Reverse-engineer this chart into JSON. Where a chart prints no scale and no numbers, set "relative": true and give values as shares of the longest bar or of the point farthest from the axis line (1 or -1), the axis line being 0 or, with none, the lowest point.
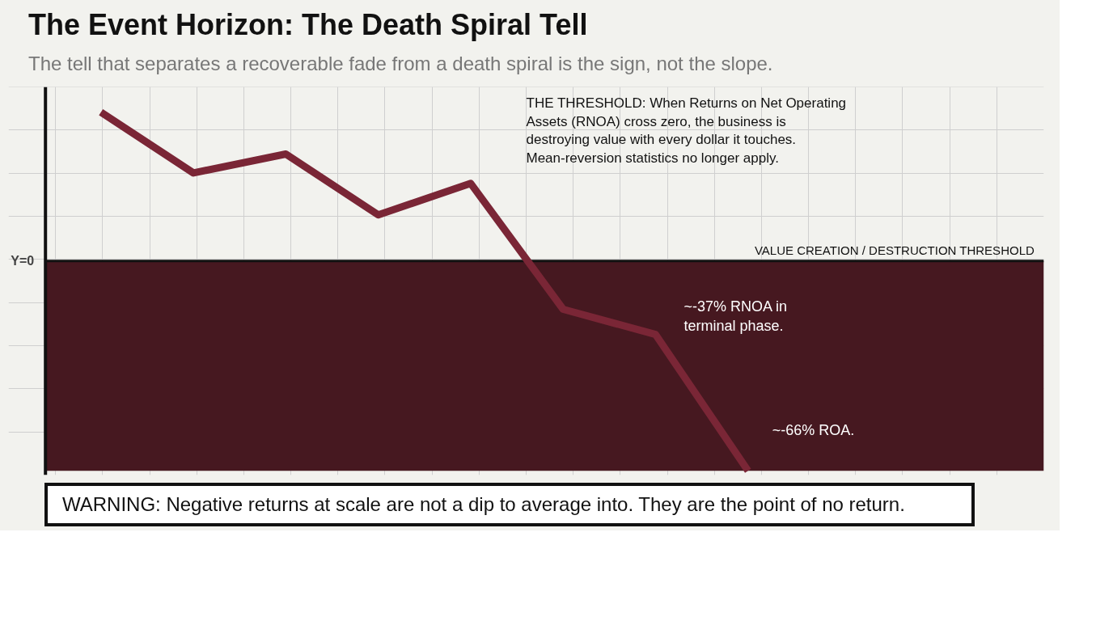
{
  "chart_data": {
    "type": "line",
    "relative": true,
    "title": "The Event Horizon: The Death Spiral Tell",
    "subtitle": "The tell that separates a recoverable fade from a death spiral is the sign, not the slope.",
    "categories": [
      null,
      null,
      null,
      null,
      null,
      null,
      null,
      null
    ],
    "tick_labels": false,
    "grid": true,
    "marker": "none",
    "line_style": "solid",
    "series": [
      {
        "color": "#7a2636",
        "values": [
          0.71,
          0.42,
          0.51,
          0.22,
          0.37,
          -0.23,
          -0.35,
          -1.0
        ]
      }
    ],
    "ref_lines": [
      {
        "axis": "y",
        "label": "VALUE CREATION / DESTRUCTION THRESHOLD",
        "color": "#111111",
        "line_style": "solid"
      }
    ],
    "bands": [
      {
        "axis": "y",
        "from": -1.0,
        "to": 0,
        "color": "#461820"
      }
    ],
    "annotations": [
      "Y=0",
      "THE THRESHOLD: When Returns on Net Operating Assets (RNOA) cross zero, the business is destroying value with every dollar it touches. Mean-reversion statistics no longer apply.",
      "~-37% RNOA in terminal phase.",
      "~-66% ROA.",
      "WARNING: Negative returns at scale are not a dip to average into. They are the point of no return."
    ]
  }
}
